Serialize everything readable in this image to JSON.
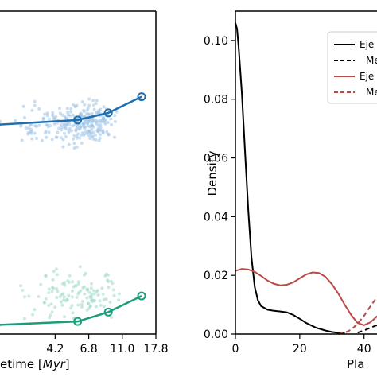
{
  "chart_data": [
    {
      "type": "scatter",
      "xlabel_plain": "etime [",
      "xlabel_italic": "Myr",
      "xlabel_close": "]",
      "x_ticks": [
        "4.2",
        "6.8",
        "11.0",
        "17.8"
      ],
      "x_tick_values": [
        4.2,
        6.8,
        11.0,
        17.8
      ],
      "xlim": [
        1.7,
        17.8
      ],
      "ylim": [
        0,
        1
      ],
      "series": [
        {
          "color": "#1f6fb0",
          "points": [
            [
              1.8,
              0.648
            ],
            [
              5.8,
              0.663
            ],
            [
              9.0,
              0.685
            ],
            [
              14.5,
              0.735
            ]
          ]
        },
        {
          "color": "#1a9e7a",
          "points": [
            [
              1.8,
              0.028
            ],
            [
              5.8,
              0.039
            ],
            [
              9.0,
              0.068
            ],
            [
              14.5,
              0.118
            ]
          ]
        }
      ],
      "scatter_clouds": [
        {
          "color": "#9cc3e6",
          "x_center": 5.8,
          "x_spread": 3.5,
          "y_center": 0.65,
          "y_spread": 0.06,
          "count": 280
        },
        {
          "color": "#9fd9c8",
          "x_center": 5.8,
          "x_spread": 4.0,
          "y_center": 0.12,
          "y_spread": 0.07,
          "count": 130
        }
      ]
    },
    {
      "type": "line",
      "xlabel": "Pla",
      "ylabel": "Density",
      "y_ticks": [
        "0.00",
        "0.02",
        "0.04",
        "0.06",
        "0.08",
        "0.10"
      ],
      "y_tick_values": [
        0,
        0.02,
        0.04,
        0.06,
        0.08,
        0.1
      ],
      "x_ticks": [
        "0",
        "20",
        "40"
      ],
      "x_tick_values": [
        0,
        20,
        40
      ],
      "xlim": [
        0,
        47
      ],
      "ylim": [
        0,
        0.11
      ],
      "legend_position": "top-right",
      "legend": [
        {
          "label": "Eje",
          "color": "#000000",
          "dash": false
        },
        {
          "label": "Me",
          "color": "#000000",
          "dash": true
        },
        {
          "label": "Eje",
          "color": "#b94a48",
          "dash": false
        },
        {
          "label": "Me",
          "color": "#b94a48",
          "dash": true
        }
      ],
      "series": [
        {
          "color": "#000000",
          "dash": false,
          "x": [
            0,
            0.5,
            1,
            2,
            3,
            4,
            5,
            6,
            7,
            8,
            10,
            12,
            14,
            16,
            18,
            20,
            22,
            25,
            28,
            30,
            32,
            34
          ],
          "y": [
            0.106,
            0.104,
            0.098,
            0.082,
            0.062,
            0.042,
            0.026,
            0.016,
            0.0115,
            0.0095,
            0.0083,
            0.0079,
            0.0077,
            0.0074,
            0.0065,
            0.0052,
            0.0038,
            0.0022,
            0.0012,
            0.0007,
            0.0004,
            0.0003
          ]
        },
        {
          "color": "#000000",
          "dash": true,
          "x": [
            38,
            40,
            42,
            44,
            46
          ],
          "y": [
            0.0005,
            0.0012,
            0.0022,
            0.003,
            0.0035
          ]
        },
        {
          "color": "#b94a48",
          "dash": false,
          "x": [
            0,
            2,
            4,
            6,
            8,
            10,
            12,
            14,
            16,
            18,
            20,
            22,
            24,
            26,
            28,
            30,
            32,
            34,
            36,
            38,
            40,
            42,
            44,
            46
          ],
          "y": [
            0.0215,
            0.0222,
            0.022,
            0.0212,
            0.0198,
            0.0182,
            0.0171,
            0.0166,
            0.0168,
            0.0176,
            0.019,
            0.0203,
            0.021,
            0.0208,
            0.0195,
            0.017,
            0.0138,
            0.01,
            0.0065,
            0.0038,
            0.003,
            0.004,
            0.006,
            0.008
          ]
        },
        {
          "color": "#b94a48",
          "dash": true,
          "x": [
            32,
            34,
            36,
            38,
            40,
            42,
            44,
            46
          ],
          "y": [
            0.0,
            0.0004,
            0.0015,
            0.0035,
            0.0062,
            0.0095,
            0.0125,
            0.0145
          ]
        }
      ]
    }
  ]
}
